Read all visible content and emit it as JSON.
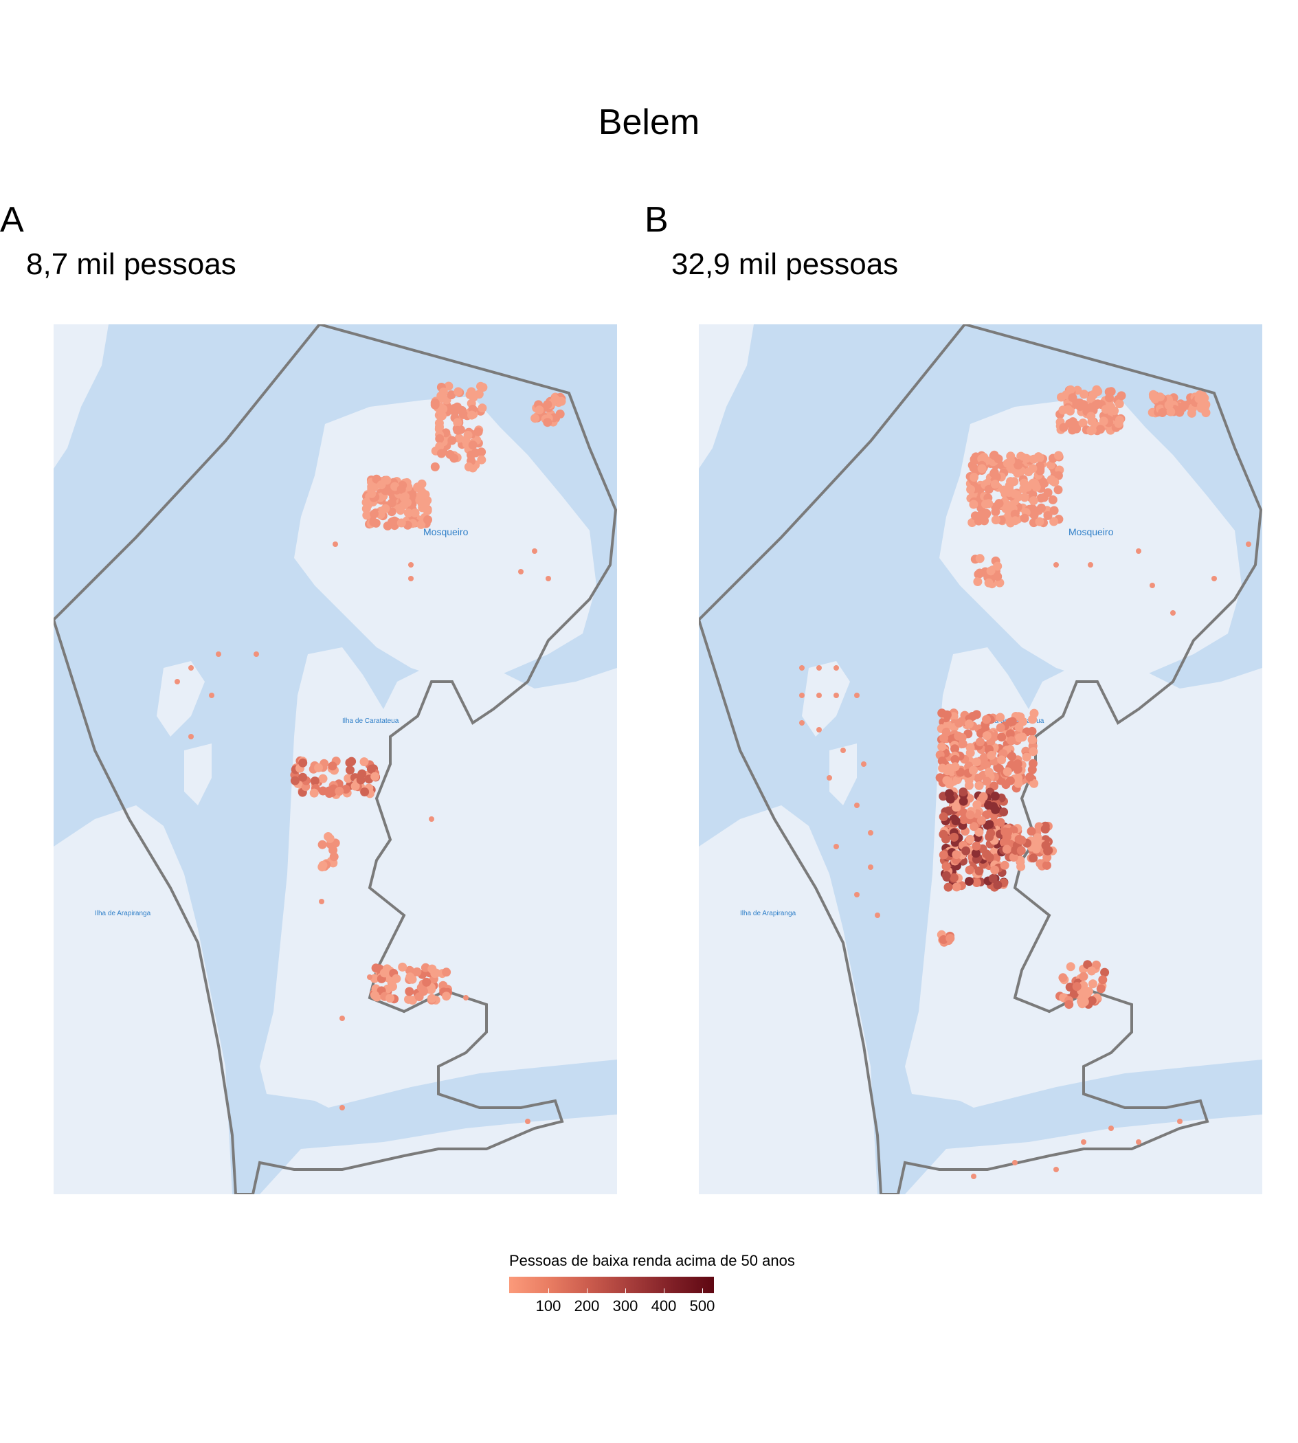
{
  "title": "Belem",
  "panels": [
    {
      "letter": "A",
      "subtitle": "8,7 mil pessoas"
    },
    {
      "letter": "B",
      "subtitle": "32,9 mil pessoas"
    }
  ],
  "map_labels": {
    "mosqueiro": "Mosqueiro",
    "caratateua": "Ilha de Caratateua",
    "arapiranga": "Ilha de Arapiranga"
  },
  "legend": {
    "title": "Pessoas de baixa renda acima de 50 anos",
    "ticks": [
      "100",
      "200",
      "300",
      "400",
      "500"
    ]
  },
  "colors": {
    "water": "#c6dcf2",
    "land": "#e8eff8",
    "boundary": "#7a7a7a",
    "low": "#f49a80",
    "high": "#5e0712"
  }
}
